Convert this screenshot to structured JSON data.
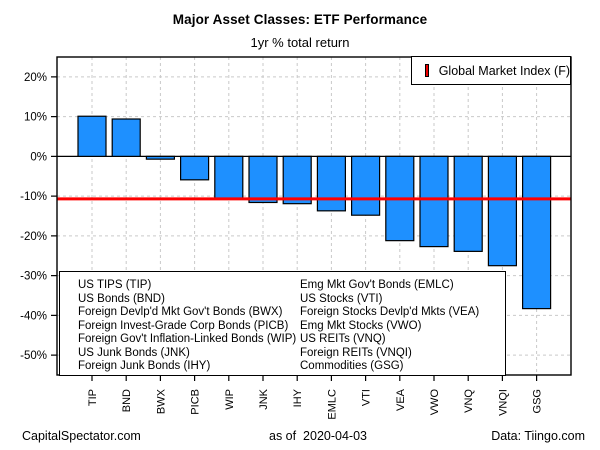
{
  "header": {
    "title": "Major Asset Classes: ETF Performance",
    "subtitle": "1yr % total return"
  },
  "legend": {
    "label": "Global Market Index (F)",
    "swatch_color": "#ee0000",
    "position": "top-right"
  },
  "chart_data": {
    "type": "bar",
    "title": "Major Asset Classes: ETF Performance",
    "subtitle": "1yr % total return",
    "xlabel": "",
    "ylabel": "",
    "categories": [
      "TIP",
      "BND",
      "BWX",
      "PICB",
      "WIP",
      "JNK",
      "IHY",
      "EMLC",
      "VTI",
      "VEA",
      "VWO",
      "VNQ",
      "VNQI",
      "GSG"
    ],
    "values": [
      10.1,
      9.4,
      -0.7,
      -5.9,
      -10.5,
      -11.6,
      -11.9,
      -13.7,
      -14.8,
      -21.2,
      -22.7,
      -23.9,
      -27.5,
      -38.3
    ],
    "ylim": [
      -55,
      25
    ],
    "y_ticks": [
      20,
      10,
      0,
      -10,
      -20,
      -30,
      -40,
      -50
    ],
    "y_tick_labels": [
      "20%",
      "10%",
      "0%",
      "-10%",
      "-20%",
      "-30%",
      "-40%",
      "-50%"
    ],
    "grid": "dashed",
    "grid_color": "#c9c9c9",
    "bar_color": "#1e90ff",
    "bar_border_color": "#000000",
    "reference_line": {
      "label": "Global Market Index (F)",
      "value": -10.7,
      "color": "#ff0000"
    }
  },
  "key_box": {
    "left": [
      "US TIPS (TIP)",
      "US Bonds (BND)",
      "Foreign Devlp'd Mkt Gov't Bonds (BWX)",
      "Foreign Invest-Grade Corp Bonds (PICB)",
      "Foreign Gov't Inflation-Linked Bonds (WIP)",
      "US Junk Bonds (JNK)",
      "Foreign Junk Bonds (IHY)"
    ],
    "right": [
      "Emg Mkt Gov't Bonds (EMLC)",
      "US Stocks (VTI)",
      "Foreign Stocks Devlp'd Mkts (VEA)",
      "Emg Mkt Stocks (VWO)",
      "US REITs (VNQ)",
      "Foreign REITs (VNQI)",
      "Commodities (GSG)"
    ]
  },
  "footer": {
    "left": "CapitalSpectator.com",
    "center": "as of  2020-04-03",
    "right": "Data: Tiingo.com"
  }
}
